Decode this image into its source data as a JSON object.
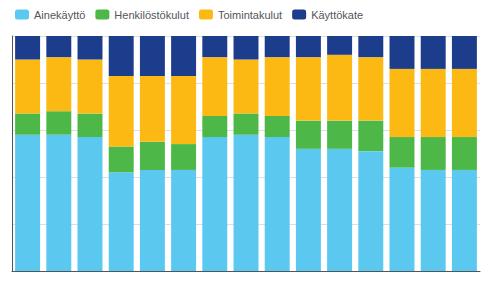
{
  "chart_data": {
    "type": "bar",
    "stacked": true,
    "categories": [
      null,
      null,
      null,
      null,
      null,
      null,
      null,
      null,
      null,
      null,
      null,
      null,
      null,
      null,
      null
    ],
    "series": [
      {
        "name": "Ainekäyttö",
        "color": "#5BC8F0",
        "values": [
          58,
          58,
          57,
          42,
          43,
          43,
          57,
          58,
          57,
          52,
          52,
          51,
          44,
          43,
          43
        ]
      },
      {
        "name": "Henkilöstökulut",
        "color": "#4DB848",
        "values": [
          9,
          10,
          10,
          11,
          12,
          11,
          9,
          9,
          9,
          12,
          12,
          13,
          13,
          14,
          14
        ]
      },
      {
        "name": "Toimintakulut",
        "color": "#FDB913",
        "values": [
          23,
          23,
          23,
          30,
          28,
          29,
          25,
          23,
          25,
          27,
          28,
          27,
          29,
          29,
          29
        ]
      },
      {
        "name": "Käyttökate",
        "color": "#1C3C8C",
        "values": [
          10,
          9,
          10,
          17,
          17,
          17,
          9,
          10,
          9,
          9,
          8,
          9,
          14,
          14,
          14
        ]
      }
    ],
    "ylim": [
      0,
      100
    ],
    "yticks": [
      20,
      40,
      60,
      80,
      100
    ],
    "grid": true,
    "legend": "upper left",
    "tick_labels": false
  }
}
